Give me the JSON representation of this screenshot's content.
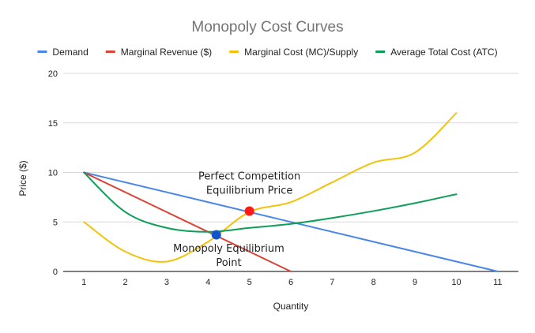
{
  "chart_data": {
    "type": "line",
    "title": "Monopoly Cost Curves",
    "xlabel": "Quantity",
    "ylabel": "Price ($)",
    "xlim": [
      0.5,
      11.5
    ],
    "ylim": [
      0,
      20
    ],
    "x_ticks": [
      1,
      2,
      3,
      4,
      5,
      6,
      7,
      8,
      9,
      10,
      11
    ],
    "y_ticks": [
      0,
      5,
      10,
      15,
      20
    ],
    "grid": true,
    "legend_position": "top",
    "series": [
      {
        "name": "Demand",
        "color": "#4a86e8",
        "points": [
          [
            1,
            10
          ],
          [
            11,
            0
          ]
        ],
        "smooth": false
      },
      {
        "name": "Marginal Revenue ($)",
        "color": "#db4437",
        "points": [
          [
            1,
            10
          ],
          [
            6,
            0
          ]
        ],
        "smooth": false
      },
      {
        "name": "Marginal Cost (MC)/Supply",
        "color": "#f4c20d",
        "points": [
          [
            1,
            5
          ],
          [
            2,
            2
          ],
          [
            3,
            1
          ],
          [
            4,
            3
          ],
          [
            5,
            6
          ],
          [
            6,
            7
          ],
          [
            7,
            9
          ],
          [
            8,
            11
          ],
          [
            9,
            12
          ],
          [
            10,
            16
          ]
        ],
        "smooth": true
      },
      {
        "name": "Average Total Cost (ATC)",
        "color": "#0f9d58",
        "points": [
          [
            1,
            10
          ],
          [
            2,
            6
          ],
          [
            3,
            4.4
          ],
          [
            4,
            4
          ],
          [
            5,
            4.4
          ],
          [
            6,
            4.8
          ],
          [
            7,
            5.4
          ],
          [
            8,
            6.1
          ],
          [
            9,
            6.9
          ],
          [
            10,
            7.8
          ]
        ],
        "smooth": true
      }
    ],
    "markers": [
      {
        "name": "perfect-competition-point",
        "x": 5,
        "y": 6.1,
        "color": "#ff1a1a"
      },
      {
        "name": "monopoly-equilibrium-point",
        "x": 4.2,
        "y": 3.7,
        "color": "#1155cc"
      }
    ],
    "annotations": [
      {
        "name": "perfect-competition-label",
        "lines": [
          "Perfect Competition",
          "Equilibrium Price"
        ],
        "x": 5,
        "y": 9.3
      },
      {
        "name": "monopoly-equilibrium-label",
        "lines": [
          "Monopoly Equilibrium",
          "Point"
        ],
        "x": 4.5,
        "y": 2.0
      }
    ]
  }
}
